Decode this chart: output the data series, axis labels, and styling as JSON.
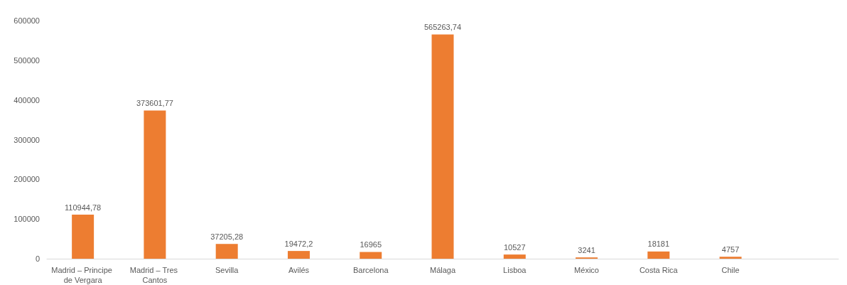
{
  "chart_data": {
    "type": "bar",
    "categories": [
      "Madrid – Principe de Vergara",
      "Madrid – Tres Cantos",
      "Sevilla",
      "Avilés",
      "Barcelona",
      "Málaga",
      "Lisboa",
      "México",
      "Costa Rica",
      "Chile",
      null
    ],
    "values": [
      110944.78,
      373601.77,
      37205.28,
      19472.2,
      16965,
      565263.74,
      10527,
      3241,
      18181,
      4757,
      null
    ],
    "value_labels": [
      "110944,78",
      "373601,77",
      "37205,28",
      "19472,2",
      "16965",
      "565263,74",
      "10527",
      "3241",
      "18181",
      "4757",
      null
    ],
    "color": "#ed7d31",
    "ylim": [
      0,
      600000
    ],
    "yticks": [
      0,
      100000,
      200000,
      300000,
      400000,
      500000,
      600000
    ],
    "grid": false
  }
}
